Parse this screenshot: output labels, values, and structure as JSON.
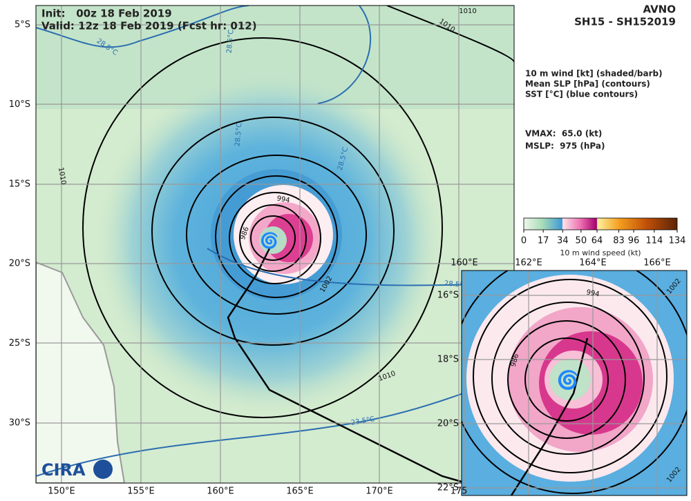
{
  "header": {
    "init": "Init:   00z 18 Feb 2019",
    "valid": "Valid: 12z 18 Feb 2019 (Fcst hr: 012)",
    "model": "AVNO",
    "storm": "SH15 - SH152019"
  },
  "legend": {
    "lines": [
      "10 m wind [kt] (shaded/barb)",
      "Mean SLP [hPa] (contours)",
      "SST [°C] (blue contours)"
    ],
    "vmax": "VMAX:  65.0 (kt)",
    "mslp": "MSLP:  975 (hPa)"
  },
  "colorbar": {
    "ticks": [
      0,
      17,
      34,
      50,
      64,
      83,
      96,
      114,
      134
    ],
    "label": "10 m wind speed (kt)"
  },
  "main_map": {
    "lat_labels": [
      "5°S",
      "10°S",
      "15°S",
      "20°S",
      "25°S",
      "30°S"
    ],
    "lon_labels": [
      "150°E",
      "155°E",
      "160°E",
      "165°E",
      "170°E",
      "175"
    ],
    "contour_labels": [
      "1010",
      "1010",
      "1010",
      "994",
      "986",
      "1002",
      "1010",
      "28.5°C",
      "28.5°C",
      "28.5°C",
      "28.5°C",
      "28.5°C",
      "23.5°C"
    ]
  },
  "inset_map": {
    "lat_labels": [
      "16°S",
      "18°S",
      "20°S",
      "22°S"
    ],
    "lon_labels": [
      "160°E",
      "162°E",
      "164°E",
      "166°E"
    ],
    "contour_labels": [
      "994",
      "986",
      "1002",
      "1002"
    ]
  },
  "logo": "CIRA"
}
